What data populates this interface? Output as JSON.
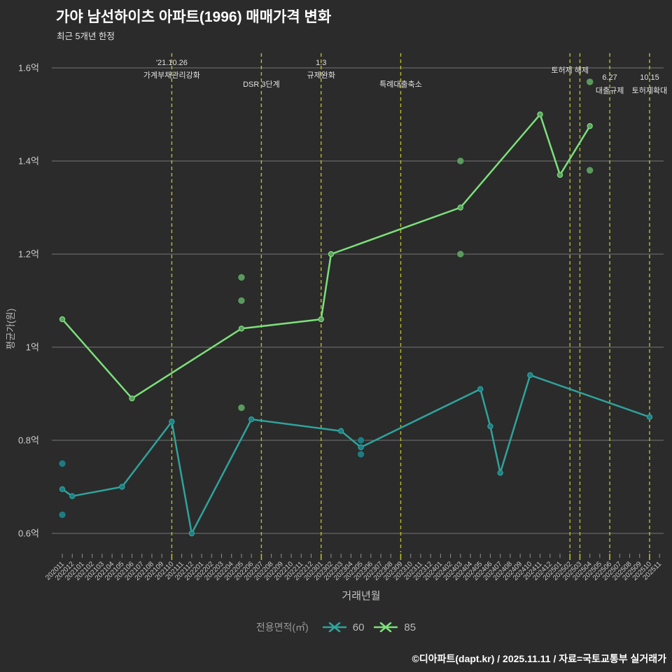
{
  "title": "가야 남선하이츠 아파트(1996) 매매가격 변화",
  "subtitle": "최근 5개년 한정",
  "footer": "©디아파트(dapt.kr) / 2025.11.11 / 자료=국토교통부 실거래가",
  "legend": {
    "title": "전용면적(㎡)",
    "items": [
      {
        "label": "60",
        "color": "#2fa39c"
      },
      {
        "label": "85",
        "color": "#7be07a"
      }
    ]
  },
  "chart_data": {
    "type": "line",
    "title": "가야 남선하이츠 아파트(1996) 매매가격 변화",
    "xlabel": "거래년월",
    "ylabel": "평균가(원)",
    "ylim": [
      0.6,
      1.6
    ],
    "unit": "억",
    "months": [
      "202011",
      "202012",
      "202101",
      "202102",
      "202103",
      "202104",
      "202105",
      "202106",
      "202107",
      "202108",
      "202109",
      "202110",
      "202111",
      "202112",
      "202201",
      "202202",
      "202203",
      "202204",
      "202205",
      "202206",
      "202207",
      "202208",
      "202209",
      "202210",
      "202211",
      "202212",
      "202301",
      "202302",
      "202303",
      "202304",
      "202305",
      "202306",
      "202307",
      "202308",
      "202309",
      "202310",
      "202311",
      "202312",
      "202401",
      "202402",
      "202403",
      "202404",
      "202405",
      "202406",
      "202407",
      "202408",
      "202409",
      "202410",
      "202411",
      "202412",
      "202501",
      "202502",
      "202503",
      "202504",
      "202505",
      "202506",
      "202507",
      "202508",
      "202509",
      "202510",
      "202511"
    ],
    "y_ticks": [
      {
        "value": 0.6,
        "label": "0.6억"
      },
      {
        "value": 0.8,
        "label": "0.8억"
      },
      {
        "value": 1.0,
        "label": "1억"
      },
      {
        "value": 1.2,
        "label": "1.2억"
      },
      {
        "value": 1.4,
        "label": "1.4억"
      },
      {
        "value": 1.6,
        "label": "1.6억"
      }
    ],
    "series": [
      {
        "name": "60",
        "color": "#2fa39c",
        "marker_fill": "#1f7f86",
        "points": [
          [
            "202011",
            0.695
          ],
          [
            "202012",
            0.68
          ],
          [
            "202105",
            0.7
          ],
          [
            "202110",
            0.84
          ],
          [
            "202112",
            0.6
          ],
          [
            "202206",
            0.845
          ],
          [
            "202303",
            0.82
          ],
          [
            "202305",
            0.785
          ],
          [
            "202405",
            0.91
          ],
          [
            "202406",
            0.83
          ],
          [
            "202407",
            0.73
          ],
          [
            "202410",
            0.94
          ],
          [
            "202510",
            0.85
          ]
        ]
      },
      {
        "name": "85",
        "color": "#7be07a",
        "marker_fill": "#5f9f62",
        "points": [
          [
            "202011",
            1.06
          ],
          [
            "202106",
            0.89
          ],
          [
            "202205",
            1.04
          ],
          [
            "202301",
            1.06
          ],
          [
            "202302",
            1.2
          ],
          [
            "202403",
            1.3
          ],
          [
            "202411",
            1.5
          ],
          [
            "202501",
            1.37
          ],
          [
            "202504",
            1.475
          ]
        ]
      }
    ],
    "scatter": [
      {
        "series": "60",
        "color": "#1f7f86",
        "points": [
          [
            "202011",
            0.75
          ],
          [
            "202011",
            0.64
          ],
          [
            "202305",
            0.8
          ],
          [
            "202305",
            0.77
          ]
        ]
      },
      {
        "series": "85",
        "color": "#5f9f62",
        "points": [
          [
            "202205",
            1.15
          ],
          [
            "202205",
            1.1
          ],
          [
            "202205",
            0.87
          ],
          [
            "202403",
            1.4
          ],
          [
            "202403",
            1.2
          ],
          [
            "202504",
            1.57
          ],
          [
            "202504",
            1.38
          ]
        ]
      }
    ],
    "events": [
      {
        "month": "202110",
        "texts": [
          {
            "t": "'21.10.26",
            "y": 93
          },
          {
            "t": "가계부채관리강화",
            "y": 111
          }
        ]
      },
      {
        "month": "202207",
        "texts": [
          {
            "t": "DSR 3단계",
            "y": 124
          }
        ]
      },
      {
        "month": "202301",
        "texts": [
          {
            "t": "1.3",
            "y": 93
          },
          {
            "t": "규제완화",
            "y": 111
          }
        ]
      },
      {
        "month": "202309",
        "texts": [
          {
            "t": "특례대출축소",
            "y": 124
          }
        ]
      },
      {
        "month": "202502",
        "texts": [
          {
            "t": "토허제 해제",
            "y": 104
          }
        ]
      },
      {
        "month": "202503",
        "texts": []
      },
      {
        "month": "202506",
        "texts": [
          {
            "t": "6.27",
            "y": 114
          },
          {
            "t": "대출규제",
            "y": 133
          }
        ]
      },
      {
        "month": "202510",
        "texts": [
          {
            "t": "10.15",
            "y": 114
          },
          {
            "t": "토허제확대",
            "y": 133
          }
        ]
      }
    ],
    "style": {
      "background": "#2b2b2b",
      "grid": "#757575",
      "event_line": "#b9bd2b",
      "tick_text": "#cfcfcf",
      "annotation_text": "#e2e2e2"
    }
  }
}
